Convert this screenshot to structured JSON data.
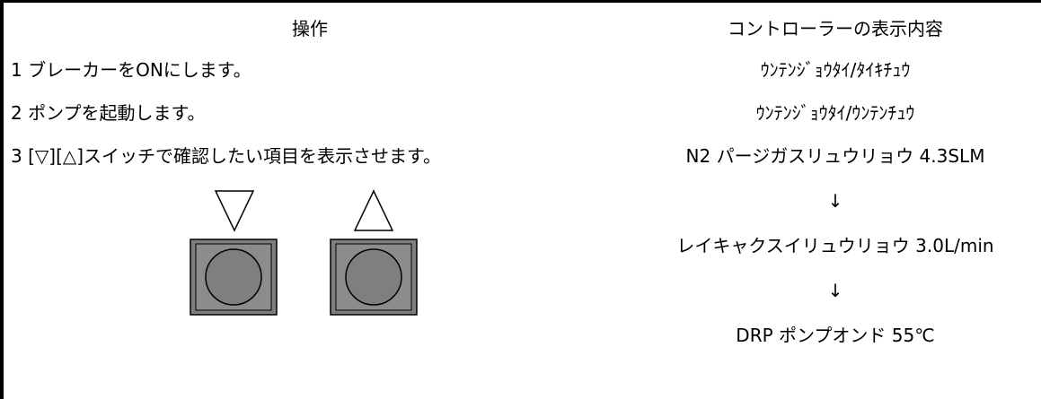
{
  "header": {
    "operation": "操作",
    "display": "コントローラーの表示内容"
  },
  "operations": [
    "1 ブレーカーをONにします。",
    "2 ポンプを起動します。",
    "3 [▽][△]スイッチで確認したい項目を表示させます。"
  ],
  "displays": [
    "ｳﾝﾃﾝｼﾞｮｳﾀｲ/ﾀｲｷﾁｭｳ",
    "ｳﾝﾃﾝｼﾞｮｳﾀｲ/ｳﾝﾃﾝﾁｭｳ",
    "N2 パージガスリュウリョウ  4.3SLM",
    "↓",
    "レイキャクスイリュウリョウ  3.0L/min",
    "↓",
    "DRP ポンプオンド  55℃"
  ]
}
